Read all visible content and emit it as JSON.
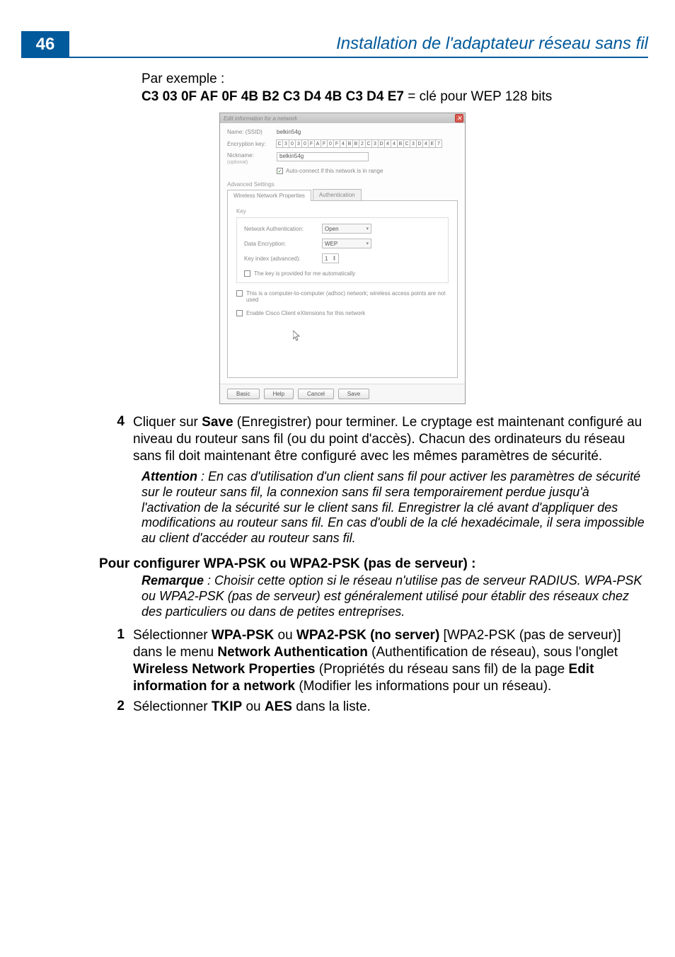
{
  "page": {
    "number": "46",
    "header_title": "Installation de l'adaptateur réseau sans fil"
  },
  "example": {
    "intro": "Par exemple :",
    "key": "C3 03 0F AF 0F 4B B2 C3 D4 4B C3 D4 E7",
    "suffix": " = clé pour WEP 128 bits"
  },
  "dialog": {
    "title": "Edit information for a network",
    "name_label": "Name: (SSID)",
    "name_value": "belkin54g",
    "encryption_label": "Encryption key:",
    "encryption_chars": [
      "C",
      "3",
      "0",
      "3",
      "0",
      "F",
      "A",
      "F",
      "0",
      "F",
      "4",
      "B",
      "B",
      "2",
      "C",
      "3",
      "D",
      "4",
      "4",
      "B",
      "C",
      "3",
      "D",
      "4",
      "E",
      "7"
    ],
    "nickname_label": "Nickname:",
    "nickname_sub": "(optional)",
    "nickname_value": "belkin54g",
    "auto_connect_label": "Auto-connect if this network is in range",
    "advanced_label": "Advanced Settings",
    "tab_properties": "Wireless Network Properties",
    "tab_auth": "Authentication",
    "key_group": "Key",
    "net_auth_label": "Network Authentication:",
    "net_auth_value": "Open",
    "data_enc_label": "Data Encryption:",
    "data_enc_value": "WEP",
    "key_index_label": "Key index (advanced):",
    "key_index_value": "1",
    "auto_key_label": "The key is provided for me automatically",
    "adhoc_label": "This is a computer-to-computer (adhoc) network; wireless access points are not used",
    "cisco_label": "Enable Cisco Client eXtensions for this network",
    "btn_basic": "Basic",
    "btn_help": "Help",
    "btn_cancel": "Cancel",
    "btn_save": "Save"
  },
  "step4": {
    "num": "4",
    "text_a": "Cliquer sur ",
    "save": "Save",
    "text_b": " (Enregistrer) pour terminer. Le cryptage est maintenant configuré au niveau du routeur sans fil (ou du point d'accès). Chacun des ordinateurs du réseau sans fil doit maintenant être configuré avec les mêmes paramètres de sécurité."
  },
  "attention": {
    "label": "Attention",
    "text": " : En cas d'utilisation d'un client sans fil pour activer les paramètres de sécurité sur le routeur sans fil, la connexion sans fil sera temporairement perdue jusqu'à l'activation de la sécurité sur le client sans fil. Enregistrer la clé avant d'appliquer des modifications au routeur sans fil. En cas d'oubli de la clé hexadécimale, il sera impossible au client d'accéder au routeur sans fil."
  },
  "wpa_heading": "Pour configurer WPA-PSK ou WPA2-PSK (pas de serveur) :",
  "remarque": {
    "label": "Remarque",
    "text": " : Choisir cette option si le réseau n'utilise pas de serveur RADIUS. WPA-PSK ou WPA2-PSK (pas de serveur) est généralement utilisé pour établir des réseaux chez des particuliers ou dans de petites entreprises."
  },
  "step1": {
    "num": "1",
    "t1": "Sélectionner ",
    "b1": "WPA-PSK",
    "t2": " ou ",
    "b2": "WPA2-PSK (no server)",
    "t3": " [WPA2-PSK (pas de serveur)] dans le menu ",
    "b3": "Network Authentication",
    "t4": " (Authentification de réseau), sous l'onglet ",
    "b4": "Wireless Network Properties",
    "t5": " (Propriétés du réseau sans fil) de la page ",
    "b5": "Edit information for a network",
    "t6": " (Modifier les informations pour un réseau)."
  },
  "step2": {
    "num": "2",
    "t1": "Sélectionner ",
    "b1": "TKIP",
    "t2": " ou ",
    "b2": "AES",
    "t3": " dans la liste."
  },
  "colors": {
    "brand": "#005a9c",
    "close_btn": "#d95b4e"
  }
}
